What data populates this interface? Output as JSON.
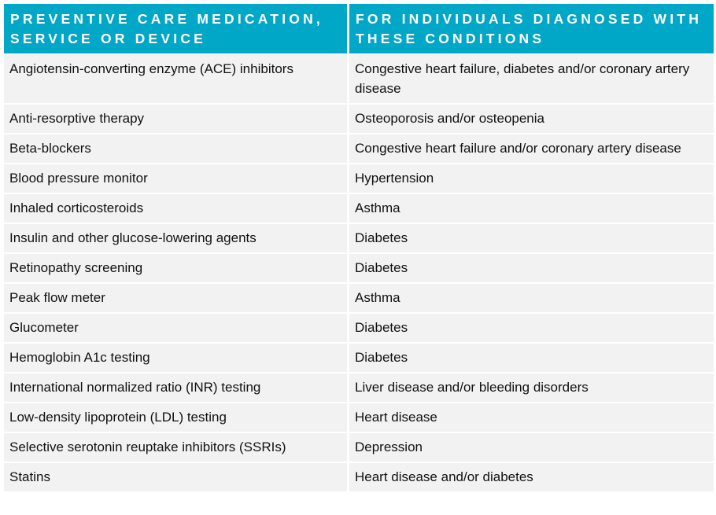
{
  "header": {
    "col1": "PREVENTIVE CARE MEDICATION, SERVICE OR DEVICE",
    "col2": "FOR INDIVIDUALS DIAGNOSED WITH THESE CONDITIONS"
  },
  "rows": [
    {
      "item": "Angiotensin-converting enzyme (ACE) inhibitors",
      "condition": "Congestive heart failure, diabetes and/or coronary artery disease"
    },
    {
      "item": "Anti-resorptive therapy",
      "condition": "Osteoporosis and/or osteopenia"
    },
    {
      "item": "Beta-blockers",
      "condition": "Congestive heart failure and/or coronary artery disease"
    },
    {
      "item": "Blood pressure monitor",
      "condition": "Hypertension"
    },
    {
      "item": "Inhaled corticosteroids",
      "condition": "Asthma"
    },
    {
      "item": "Insulin and other glucose-lowering agents",
      "condition": "Diabetes"
    },
    {
      "item": "Retinopathy screening",
      "condition": "Diabetes"
    },
    {
      "item": "Peak flow meter",
      "condition": "Asthma"
    },
    {
      "item": "Glucometer",
      "condition": "Diabetes"
    },
    {
      "item": "Hemoglobin A1c testing",
      "condition": "Diabetes"
    },
    {
      "item": "International normalized ratio (INR) testing",
      "condition": "Liver disease and/or bleeding disorders"
    },
    {
      "item": "Low-density lipoprotein (LDL) testing",
      "condition": "Heart disease"
    },
    {
      "item": "Selective serotonin reuptake inhibitors (SSRIs)",
      "condition": "Depression"
    },
    {
      "item": "Statins",
      "condition": "Heart disease and/or diabetes"
    }
  ],
  "colors": {
    "header_bg": "#00a7c6",
    "row_bg": "#f2f2f2"
  }
}
